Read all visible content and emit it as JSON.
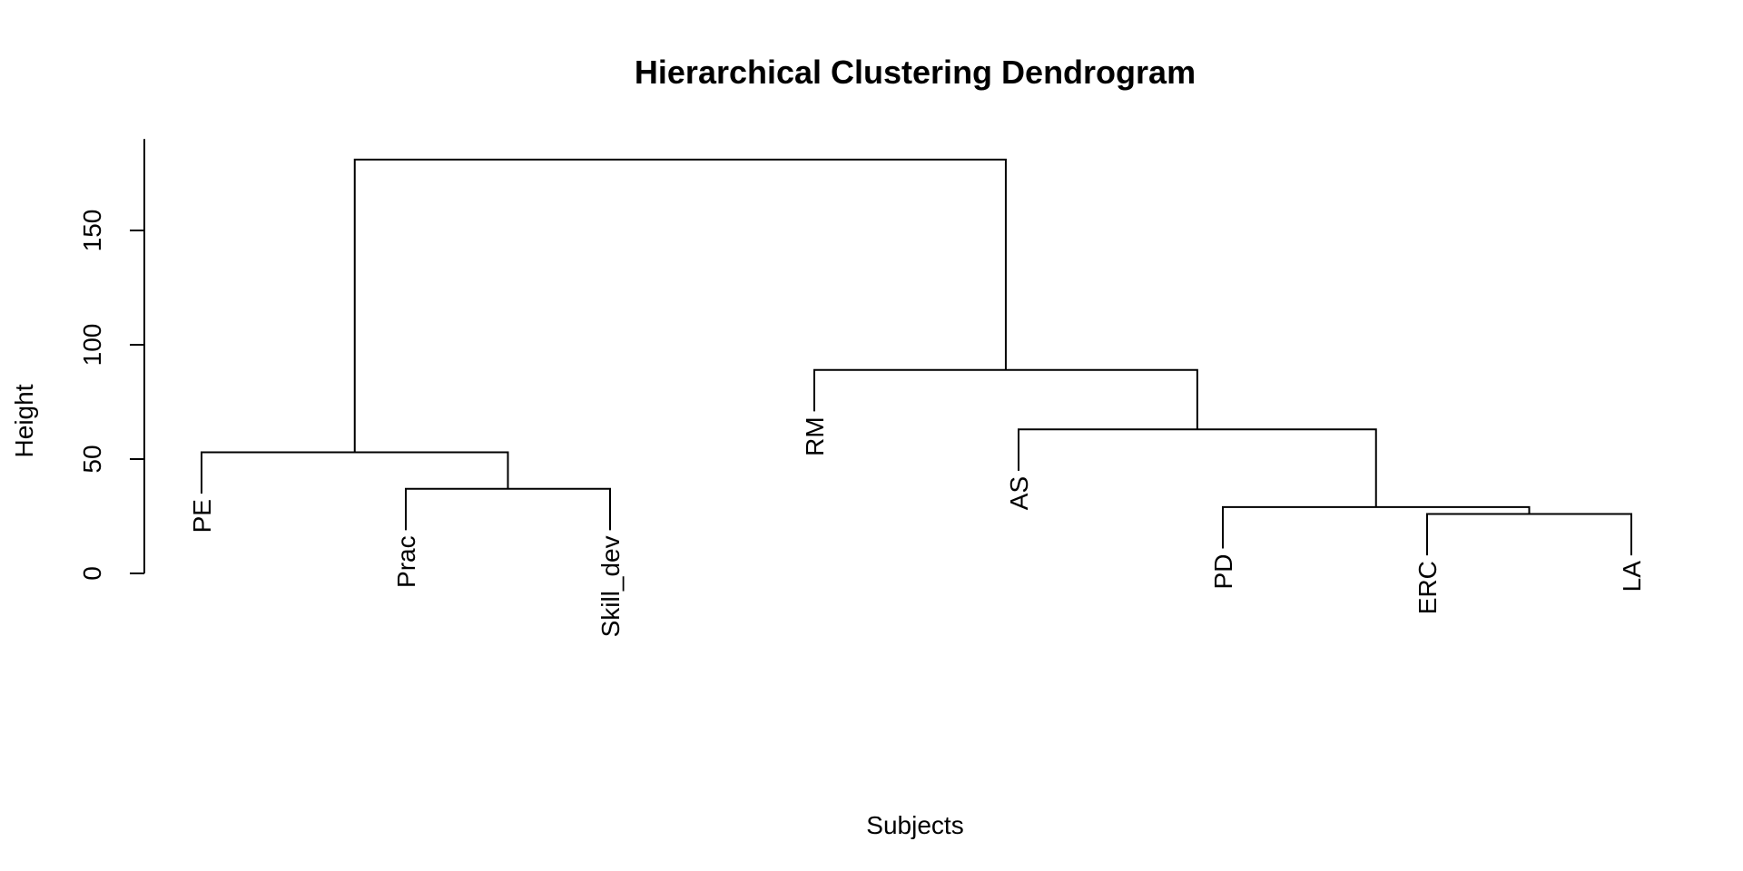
{
  "chart_data": {
    "type": "dendrogram",
    "title": "Hierarchical Clustering Dendrogram",
    "xlabel": "Subjects",
    "ylabel": "Height",
    "ylim": [
      0,
      190
    ],
    "yticks": [
      0,
      50,
      100,
      150
    ],
    "yticklabels": [
      "0",
      "50",
      "100",
      "150"
    ],
    "hang": 0.1,
    "leaves": [
      "PE",
      "Prac",
      "Skill_dev",
      "RM",
      "AS",
      "PD",
      "ERC",
      "LA"
    ],
    "merges": [
      {
        "left": "ERC",
        "right": "LA",
        "height": 26
      },
      {
        "left": "PD",
        "right": "ERC+LA",
        "height": 29
      },
      {
        "left": "Prac",
        "right": "Skill_dev",
        "height": 37
      },
      {
        "left": "PE",
        "right": "Prac+Skill_dev",
        "height": 53
      },
      {
        "left": "AS",
        "right": "PD+ERC+LA",
        "height": 63
      },
      {
        "left": "RM",
        "right": "AS+PD+ERC+LA",
        "height": 89
      },
      {
        "left": "PE+Prac+Skill_dev",
        "right": "RM+AS+PD+ERC+LA",
        "height": 181
      }
    ],
    "grid": false,
    "legend": "none"
  }
}
